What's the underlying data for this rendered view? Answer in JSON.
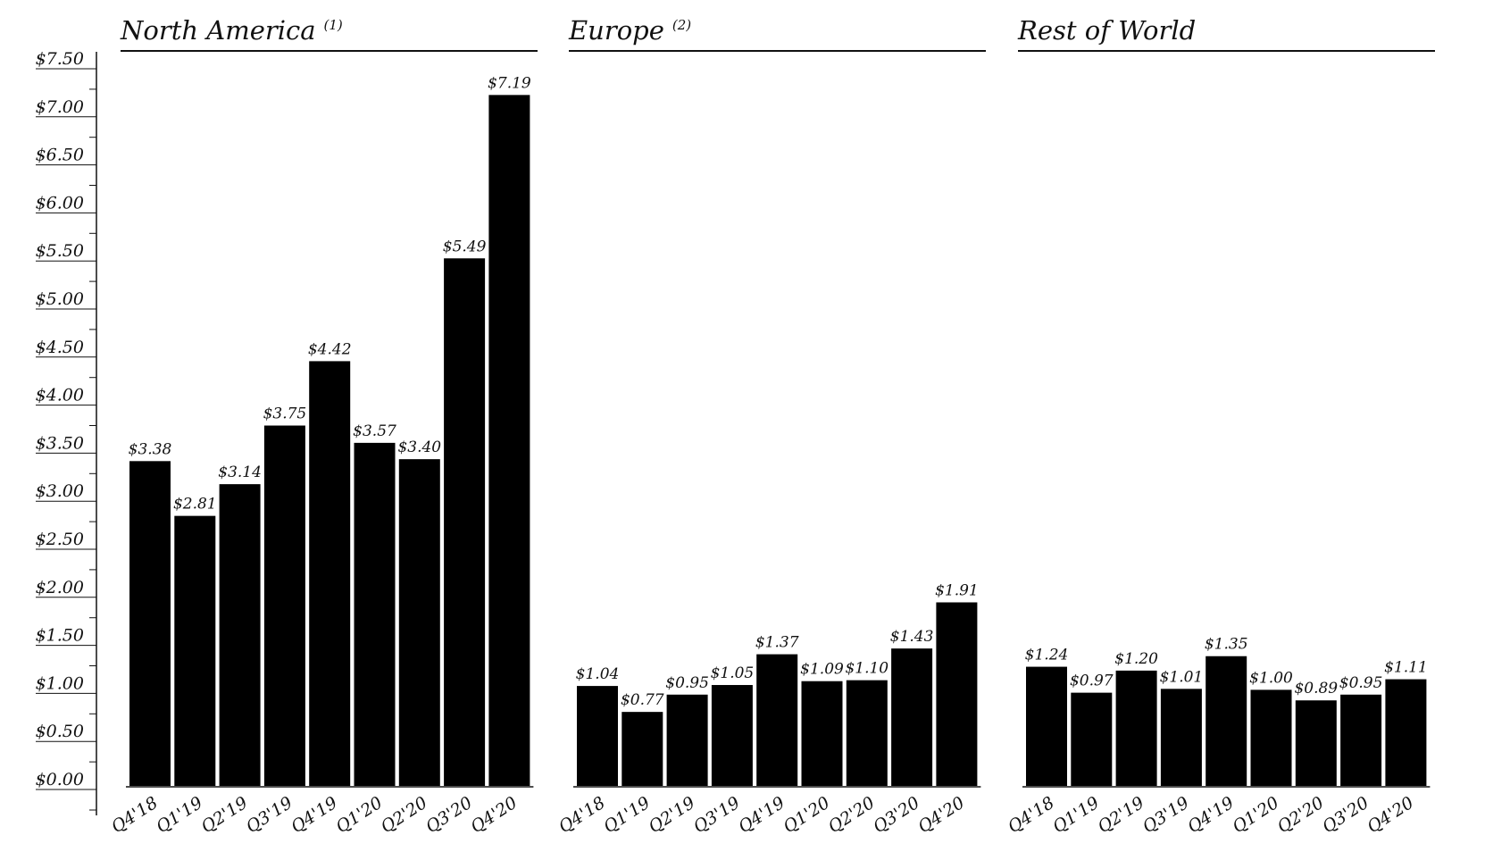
{
  "chart_data": {
    "type": "bar",
    "ylim": [
      0,
      7.5
    ],
    "y_ticks": [
      "$0.00",
      "$0.50",
      "$1.00",
      "$1.50",
      "$2.00",
      "$2.50",
      "$3.00",
      "$3.50",
      "$4.00",
      "$4.50",
      "$5.00",
      "$5.50",
      "$6.00",
      "$6.50",
      "$7.00",
      "$7.50"
    ],
    "grid": false,
    "bar_color": "#000000",
    "panels": [
      {
        "title": "North America",
        "footnote": "(1)",
        "categories": [
          "Q4'18",
          "Q1'19",
          "Q2'19",
          "Q3'19",
          "Q4'19",
          "Q1'20",
          "Q2'20",
          "Q3'20",
          "Q4'20"
        ],
        "values": [
          3.38,
          2.81,
          3.14,
          3.75,
          4.42,
          3.57,
          3.4,
          5.49,
          7.19
        ],
        "labels": [
          "$3.38",
          "$2.81",
          "$3.14",
          "$3.75",
          "$4.42",
          "$3.57",
          "$3.40",
          "$5.49",
          "$7.19"
        ]
      },
      {
        "title": "Europe",
        "footnote": "(2)",
        "categories": [
          "Q4'18",
          "Q1'19",
          "Q2'19",
          "Q3'19",
          "Q4'19",
          "Q1'20",
          "Q2'20",
          "Q3'20",
          "Q4'20"
        ],
        "values": [
          1.04,
          0.77,
          0.95,
          1.05,
          1.37,
          1.09,
          1.1,
          1.43,
          1.91
        ],
        "labels": [
          "$1.04",
          "$0.77",
          "$0.95",
          "$1.05",
          "$1.37",
          "$1.09",
          "$1.10",
          "$1.43",
          "$1.91"
        ]
      },
      {
        "title": "Rest of World",
        "footnote": "",
        "categories": [
          "Q4'18",
          "Q1'19",
          "Q2'19",
          "Q3'19",
          "Q4'19",
          "Q1'20",
          "Q2'20",
          "Q3'20",
          "Q4'20"
        ],
        "values": [
          1.24,
          0.97,
          1.2,
          1.01,
          1.35,
          1.0,
          0.89,
          0.95,
          1.11
        ],
        "labels": [
          "$1.24",
          "$0.97",
          "$1.20",
          "$1.01",
          "$1.35",
          "$1.00",
          "$0.89",
          "$0.95",
          "$1.11"
        ]
      }
    ]
  }
}
